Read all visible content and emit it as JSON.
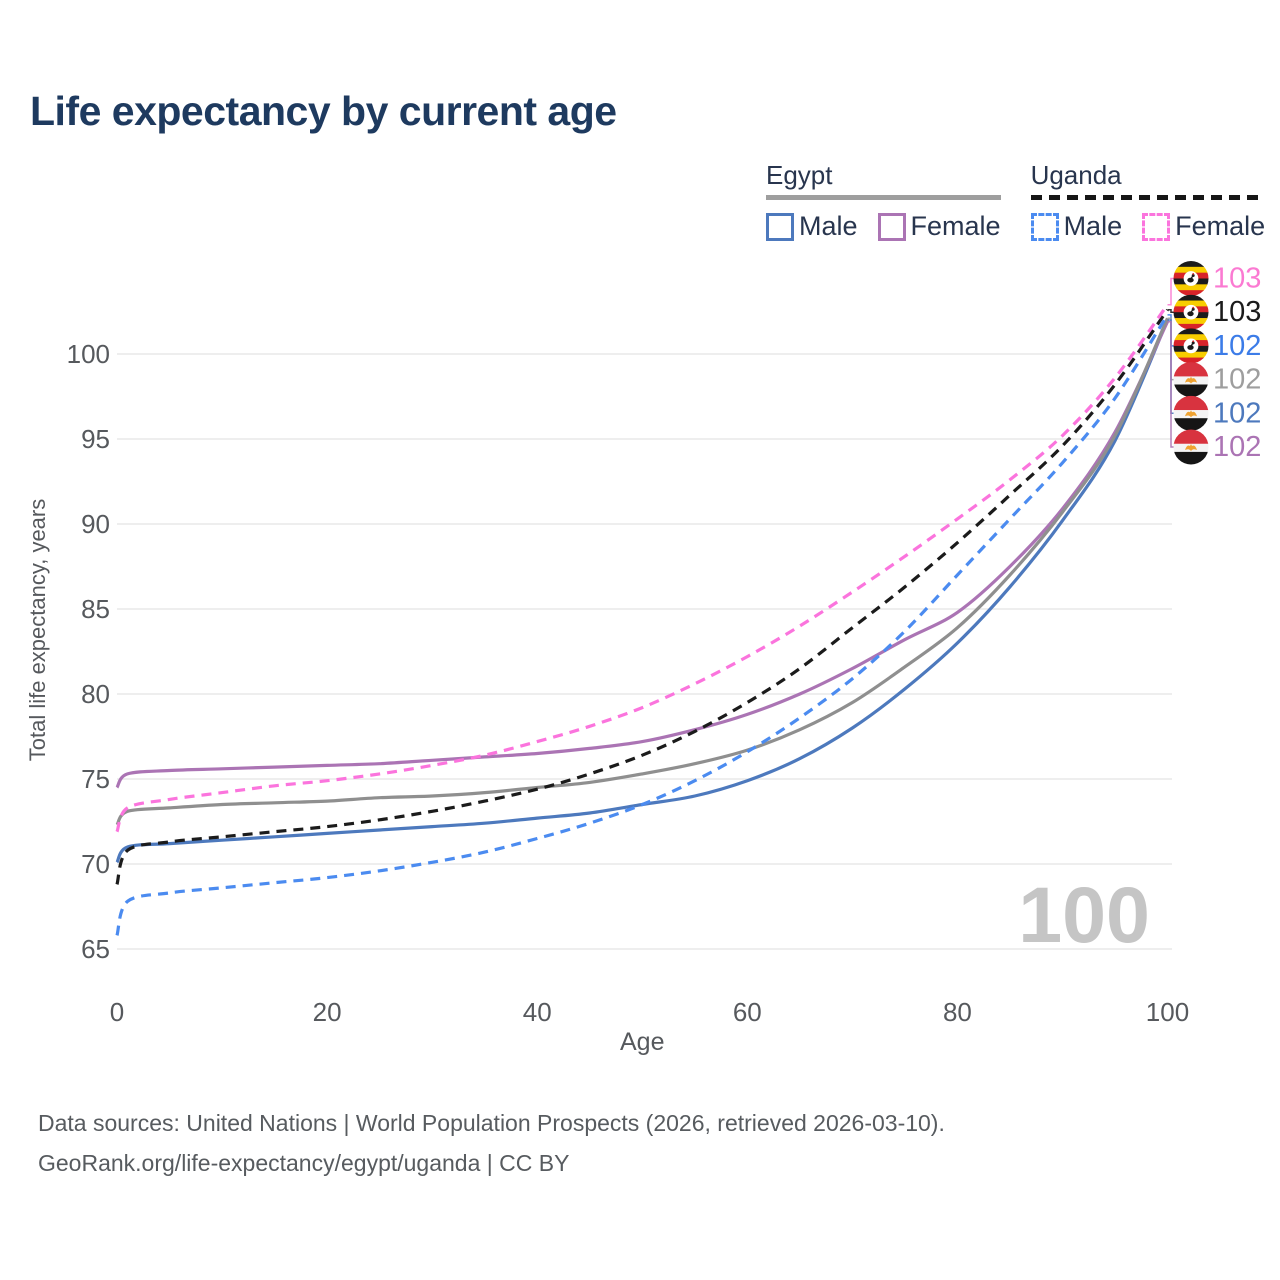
{
  "title": "Life expectancy by current age",
  "legend": {
    "groups": [
      {
        "name": "Egypt",
        "style": "solid",
        "underline_color": "#9e9e9e",
        "items": [
          {
            "label": "Male",
            "color": "#4d79bd",
            "dash": "solid"
          },
          {
            "label": "Female",
            "color": "#ab74b4",
            "dash": "solid"
          }
        ]
      },
      {
        "name": "Uganda",
        "style": "dashed",
        "underline_color": "#161616",
        "items": [
          {
            "label": "Male",
            "color": "#4b8bf0",
            "dash": "dashed"
          },
          {
            "label": "Female",
            "color": "#fb74dd",
            "dash": "dashed"
          }
        ]
      }
    ]
  },
  "footer": {
    "line1": "Data sources: United Nations | World Population Prospects (2026, retrieved 2026-03-10).",
    "line2": "GeoRank.org/life-expectancy/egypt/uganda | CC BY"
  },
  "chart_data": {
    "type": "line",
    "title": "Life expectancy by current age",
    "xlabel": "Age",
    "ylabel": "Total life expectancy, years",
    "x_ticks": [
      0,
      20,
      40,
      60,
      80,
      100
    ],
    "y_ticks": [
      65,
      70,
      75,
      80,
      85,
      90,
      95,
      100
    ],
    "xlim": [
      0,
      100
    ],
    "ylim": [
      64.5,
      103.5
    ],
    "grid": "horizontal-only",
    "legend_position": "top-right",
    "age_cursor_watermark": "100",
    "x": [
      0,
      1,
      5,
      10,
      15,
      20,
      25,
      30,
      35,
      40,
      45,
      50,
      55,
      60,
      65,
      70,
      75,
      80,
      85,
      90,
      95,
      100
    ],
    "series": [
      {
        "name": "Egypt Male",
        "color": "#4d79bd",
        "dash": "solid",
        "values": [
          70.1,
          71.0,
          71.2,
          71.4,
          71.6,
          71.8,
          72.0,
          72.2,
          72.4,
          72.7,
          73.0,
          73.5,
          74.0,
          74.9,
          76.2,
          78.0,
          80.3,
          83.0,
          86.3,
          90.2,
          94.9,
          102.0
        ]
      },
      {
        "name": "Egypt Female",
        "color": "#ab74b4",
        "dash": "solid",
        "values": [
          74.5,
          75.3,
          75.5,
          75.6,
          75.7,
          75.8,
          75.9,
          76.1,
          76.3,
          76.5,
          76.8,
          77.2,
          77.9,
          78.8,
          80.0,
          81.5,
          83.2,
          84.8,
          87.5,
          90.9,
          95.4,
          101.9
        ]
      },
      {
        "name": "Egypt (both sexes)",
        "color": "#8f8f8f",
        "dash": "solid",
        "values": [
          72.3,
          73.1,
          73.3,
          73.5,
          73.6,
          73.7,
          73.9,
          74.0,
          74.2,
          74.5,
          74.8,
          75.3,
          75.9,
          76.7,
          77.9,
          79.5,
          81.6,
          83.9,
          87.0,
          90.7,
          95.2,
          102.1
        ]
      },
      {
        "name": "Uganda (both sexes)",
        "color": "#1b1b1b",
        "dash": "dashed",
        "values": [
          68.8,
          70.8,
          71.3,
          71.6,
          71.9,
          72.2,
          72.6,
          73.1,
          73.7,
          74.4,
          75.3,
          76.4,
          77.8,
          79.5,
          81.5,
          83.9,
          86.3,
          88.9,
          91.7,
          94.6,
          98.2,
          102.6
        ]
      },
      {
        "name": "Uganda Male",
        "color": "#4b8bf0",
        "dash": "dashed",
        "values": [
          65.8,
          67.8,
          68.3,
          68.6,
          68.9,
          69.2,
          69.6,
          70.1,
          70.7,
          71.5,
          72.4,
          73.5,
          74.9,
          76.6,
          78.6,
          80.9,
          83.7,
          87.0,
          90.3,
          93.6,
          97.4,
          102.3
        ]
      },
      {
        "name": "Uganda Female",
        "color": "#fb74dd",
        "dash": "dashed",
        "values": [
          71.9,
          73.3,
          73.8,
          74.2,
          74.6,
          74.9,
          75.3,
          75.8,
          76.4,
          77.2,
          78.1,
          79.2,
          80.6,
          82.2,
          84.0,
          86.0,
          88.1,
          90.3,
          92.6,
          95.2,
          98.6,
          102.9
        ]
      }
    ],
    "end_labels": [
      {
        "text": "103",
        "color": "#fb7ad2",
        "flag": "uganda",
        "series": "Uganda Female"
      },
      {
        "text": "103",
        "color": "#1b1b1b",
        "flag": "uganda",
        "series": "Uganda (both sexes)"
      },
      {
        "text": "102",
        "color": "#3c7ce8",
        "flag": "uganda",
        "series": "Uganda Male"
      },
      {
        "text": "102",
        "color": "#9e9e9e",
        "flag": "egypt",
        "series": "Egypt (both sexes)"
      },
      {
        "text": "102",
        "color": "#4d79bd",
        "flag": "egypt",
        "series": "Egypt Male"
      },
      {
        "text": "102",
        "color": "#ab74b4",
        "flag": "egypt",
        "series": "Egypt Female"
      }
    ]
  }
}
